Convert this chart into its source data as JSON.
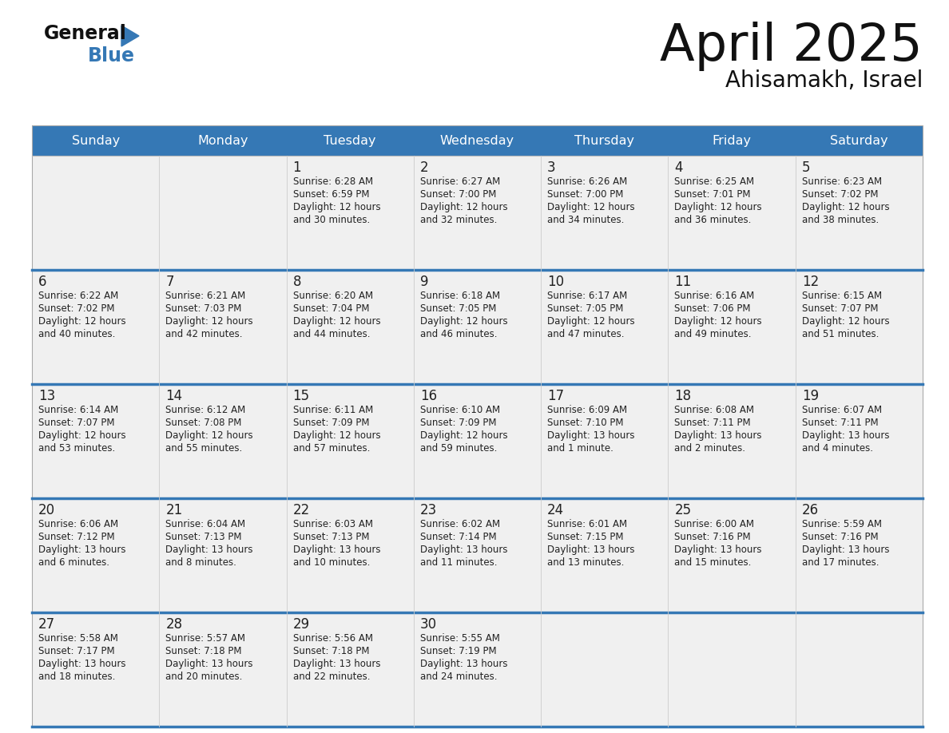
{
  "title": "April 2025",
  "subtitle": "Ahisamakh, Israel",
  "days_of_week": [
    "Sunday",
    "Monday",
    "Tuesday",
    "Wednesday",
    "Thursday",
    "Friday",
    "Saturday"
  ],
  "header_bg": "#3578b5",
  "header_text": "#ffffff",
  "cell_bg": "#f0f0f0",
  "separator_color": "#3578b5",
  "text_color": "#222222",
  "cal_data": [
    [
      null,
      null,
      {
        "day": 1,
        "sunrise": "6:28 AM",
        "sunset": "6:59 PM",
        "daylight_h": "12 hours",
        "daylight_m": "30 minutes."
      },
      {
        "day": 2,
        "sunrise": "6:27 AM",
        "sunset": "7:00 PM",
        "daylight_h": "12 hours",
        "daylight_m": "32 minutes."
      },
      {
        "day": 3,
        "sunrise": "6:26 AM",
        "sunset": "7:00 PM",
        "daylight_h": "12 hours",
        "daylight_m": "34 minutes."
      },
      {
        "day": 4,
        "sunrise": "6:25 AM",
        "sunset": "7:01 PM",
        "daylight_h": "12 hours",
        "daylight_m": "36 minutes."
      },
      {
        "day": 5,
        "sunrise": "6:23 AM",
        "sunset": "7:02 PM",
        "daylight_h": "12 hours",
        "daylight_m": "38 minutes."
      }
    ],
    [
      {
        "day": 6,
        "sunrise": "6:22 AM",
        "sunset": "7:02 PM",
        "daylight_h": "12 hours",
        "daylight_m": "40 minutes."
      },
      {
        "day": 7,
        "sunrise": "6:21 AM",
        "sunset": "7:03 PM",
        "daylight_h": "12 hours",
        "daylight_m": "42 minutes."
      },
      {
        "day": 8,
        "sunrise": "6:20 AM",
        "sunset": "7:04 PM",
        "daylight_h": "12 hours",
        "daylight_m": "44 minutes."
      },
      {
        "day": 9,
        "sunrise": "6:18 AM",
        "sunset": "7:05 PM",
        "daylight_h": "12 hours",
        "daylight_m": "46 minutes."
      },
      {
        "day": 10,
        "sunrise": "6:17 AM",
        "sunset": "7:05 PM",
        "daylight_h": "12 hours",
        "daylight_m": "47 minutes."
      },
      {
        "day": 11,
        "sunrise": "6:16 AM",
        "sunset": "7:06 PM",
        "daylight_h": "12 hours",
        "daylight_m": "49 minutes."
      },
      {
        "day": 12,
        "sunrise": "6:15 AM",
        "sunset": "7:07 PM",
        "daylight_h": "12 hours",
        "daylight_m": "51 minutes."
      }
    ],
    [
      {
        "day": 13,
        "sunrise": "6:14 AM",
        "sunset": "7:07 PM",
        "daylight_h": "12 hours",
        "daylight_m": "53 minutes."
      },
      {
        "day": 14,
        "sunrise": "6:12 AM",
        "sunset": "7:08 PM",
        "daylight_h": "12 hours",
        "daylight_m": "55 minutes."
      },
      {
        "day": 15,
        "sunrise": "6:11 AM",
        "sunset": "7:09 PM",
        "daylight_h": "12 hours",
        "daylight_m": "57 minutes."
      },
      {
        "day": 16,
        "sunrise": "6:10 AM",
        "sunset": "7:09 PM",
        "daylight_h": "12 hours",
        "daylight_m": "59 minutes."
      },
      {
        "day": 17,
        "sunrise": "6:09 AM",
        "sunset": "7:10 PM",
        "daylight_h": "13 hours",
        "daylight_m": "1 minute."
      },
      {
        "day": 18,
        "sunrise": "6:08 AM",
        "sunset": "7:11 PM",
        "daylight_h": "13 hours",
        "daylight_m": "2 minutes."
      },
      {
        "day": 19,
        "sunrise": "6:07 AM",
        "sunset": "7:11 PM",
        "daylight_h": "13 hours",
        "daylight_m": "4 minutes."
      }
    ],
    [
      {
        "day": 20,
        "sunrise": "6:06 AM",
        "sunset": "7:12 PM",
        "daylight_h": "13 hours",
        "daylight_m": "6 minutes."
      },
      {
        "day": 21,
        "sunrise": "6:04 AM",
        "sunset": "7:13 PM",
        "daylight_h": "13 hours",
        "daylight_m": "8 minutes."
      },
      {
        "day": 22,
        "sunrise": "6:03 AM",
        "sunset": "7:13 PM",
        "daylight_h": "13 hours",
        "daylight_m": "10 minutes."
      },
      {
        "day": 23,
        "sunrise": "6:02 AM",
        "sunset": "7:14 PM",
        "daylight_h": "13 hours",
        "daylight_m": "11 minutes."
      },
      {
        "day": 24,
        "sunrise": "6:01 AM",
        "sunset": "7:15 PM",
        "daylight_h": "13 hours",
        "daylight_m": "13 minutes."
      },
      {
        "day": 25,
        "sunrise": "6:00 AM",
        "sunset": "7:16 PM",
        "daylight_h": "13 hours",
        "daylight_m": "15 minutes."
      },
      {
        "day": 26,
        "sunrise": "5:59 AM",
        "sunset": "7:16 PM",
        "daylight_h": "13 hours",
        "daylight_m": "17 minutes."
      }
    ],
    [
      {
        "day": 27,
        "sunrise": "5:58 AM",
        "sunset": "7:17 PM",
        "daylight_h": "13 hours",
        "daylight_m": "18 minutes."
      },
      {
        "day": 28,
        "sunrise": "5:57 AM",
        "sunset": "7:18 PM",
        "daylight_h": "13 hours",
        "daylight_m": "20 minutes."
      },
      {
        "day": 29,
        "sunrise": "5:56 AM",
        "sunset": "7:18 PM",
        "daylight_h": "13 hours",
        "daylight_m": "22 minutes."
      },
      {
        "day": 30,
        "sunrise": "5:55 AM",
        "sunset": "7:19 PM",
        "daylight_h": "13 hours",
        "daylight_m": "24 minutes."
      },
      null,
      null,
      null
    ]
  ]
}
